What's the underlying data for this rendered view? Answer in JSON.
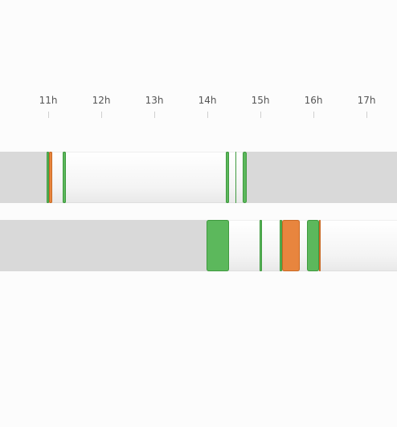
{
  "timeline": {
    "ticks": [
      {
        "label": "11h",
        "hour": 11
      },
      {
        "label": "12h",
        "hour": 12
      },
      {
        "label": "13h",
        "hour": 13
      },
      {
        "label": "14h",
        "hour": 14
      },
      {
        "label": "15h",
        "hour": 15
      },
      {
        "label": "16h",
        "hour": 16
      },
      {
        "label": "17h",
        "hour": 17
      }
    ],
    "colors": {
      "track": "#d9d9d9",
      "idle": "#ffffff",
      "green": "#5cb85c",
      "green_edge": "#3f9a3f",
      "orange": "#e8853e",
      "orange_edge": "#c96a25"
    },
    "rows": [
      {
        "segments": [
          {
            "state": "green",
            "start": 10.97,
            "end": 11.02
          },
          {
            "state": "orange",
            "start": 11.02,
            "end": 11.08
          },
          {
            "state": "idle",
            "start": 11.08,
            "end": 11.28
          },
          {
            "state": "green",
            "start": 11.28,
            "end": 11.33
          },
          {
            "state": "idle",
            "start": 11.33,
            "end": 14.35
          },
          {
            "state": "green",
            "start": 14.35,
            "end": 14.41
          },
          {
            "state": "idle",
            "start": 14.41,
            "end": 14.53
          },
          {
            "state": "green",
            "start": 14.53,
            "end": 14.55
          },
          {
            "state": "idle",
            "start": 14.55,
            "end": 14.66
          },
          {
            "state": "green",
            "start": 14.66,
            "end": 14.74
          }
        ]
      },
      {
        "segments": [
          {
            "state": "green",
            "start": 13.99,
            "end": 14.41
          },
          {
            "state": "idle",
            "start": 14.41,
            "end": 14.98
          },
          {
            "state": "green",
            "start": 14.98,
            "end": 15.03
          },
          {
            "state": "idle",
            "start": 15.03,
            "end": 15.36
          },
          {
            "state": "green",
            "start": 15.36,
            "end": 15.41
          },
          {
            "state": "orange",
            "start": 15.41,
            "end": 15.74
          },
          {
            "state": "idle",
            "start": 15.74,
            "end": 15.88
          },
          {
            "state": "green",
            "start": 15.88,
            "end": 16.1
          },
          {
            "state": "orange",
            "start": 16.1,
            "end": 16.14
          },
          {
            "state": "idle",
            "start": 16.14,
            "end": 17.7
          }
        ]
      }
    ]
  }
}
